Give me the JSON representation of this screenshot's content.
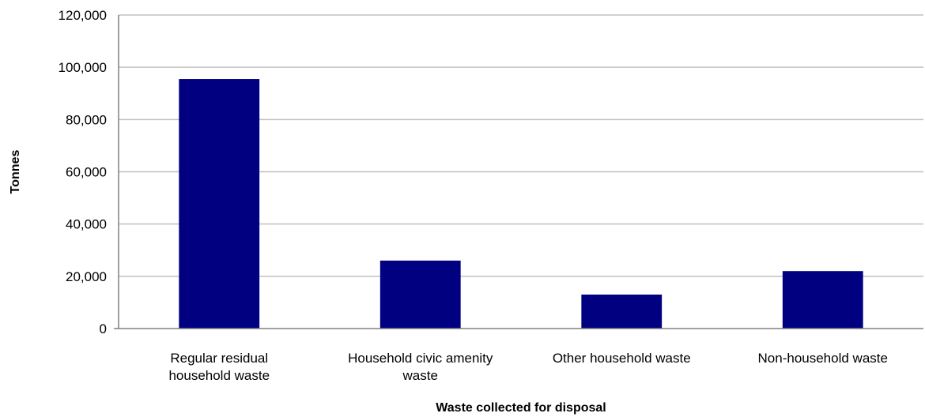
{
  "chart_data": {
    "type": "bar",
    "categories": [
      [
        "Regular residual",
        "household waste"
      ],
      [
        "Household civic amenity",
        "waste"
      ],
      [
        "Other household waste"
      ],
      [
        "Non-household waste"
      ]
    ],
    "values": [
      95500,
      26000,
      13000,
      22000
    ],
    "xlabel": "Waste collected for disposal",
    "ylabel": "Tonnes",
    "ylim": [
      0,
      120000
    ],
    "yticks": [
      "0",
      "20,000",
      "40,000",
      "60,000",
      "80,000",
      "100,000",
      "120,000"
    ],
    "ytick_values": [
      0,
      20000,
      40000,
      60000,
      80000,
      100000,
      120000
    ],
    "bar_color": "#000080",
    "grid": true,
    "legend": "none"
  }
}
